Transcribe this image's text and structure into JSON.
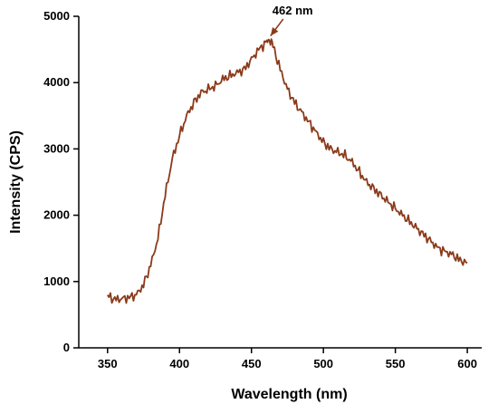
{
  "chart_data": {
    "type": "line",
    "title": "",
    "xlabel": "Wavelength (nm)",
    "ylabel": "Intensity (CPS)",
    "xlim": [
      330,
      610
    ],
    "ylim": [
      0,
      5000
    ],
    "x_ticks": [
      350,
      400,
      450,
      500,
      550,
      600
    ],
    "y_ticks": [
      0,
      1000,
      2000,
      3000,
      4000,
      5000
    ],
    "x_tick_labels": [
      "350",
      "400",
      "450",
      "500",
      "550",
      "600"
    ],
    "y_tick_labels": [
      "0",
      "1000",
      "2000",
      "3000",
      "4000",
      "5000"
    ],
    "grid": false,
    "legend": "none",
    "series_color": "#8b3a1a",
    "annotation_color": "#8b3a1a",
    "series": [
      {
        "x": [
          350,
          355,
          360,
          365,
          370,
          375,
          380,
          385,
          390,
          395,
          400,
          405,
          410,
          415,
          420,
          425,
          430,
          435,
          440,
          445,
          450,
          455,
          460,
          462,
          465,
          470,
          475,
          480,
          485,
          490,
          495,
          500,
          505,
          510,
          515,
          520,
          525,
          530,
          535,
          540,
          545,
          550,
          555,
          560,
          565,
          570,
          575,
          580,
          585,
          590,
          595,
          600
        ],
        "y": [
          780,
          730,
          740,
          760,
          800,
          950,
          1250,
          1650,
          2300,
          2850,
          3200,
          3500,
          3700,
          3850,
          3900,
          3950,
          4050,
          4100,
          4150,
          4200,
          4350,
          4500,
          4600,
          4650,
          4550,
          4200,
          3900,
          3700,
          3550,
          3400,
          3250,
          3100,
          3000,
          2950,
          2900,
          2800,
          2650,
          2500,
          2400,
          2300,
          2200,
          2100,
          2000,
          1900,
          1800,
          1700,
          1600,
          1500,
          1450,
          1400,
          1320,
          1280
        ]
      }
    ],
    "annotations": [
      {
        "text": "462 nm",
        "x": 462,
        "y": 4650
      }
    ]
  }
}
